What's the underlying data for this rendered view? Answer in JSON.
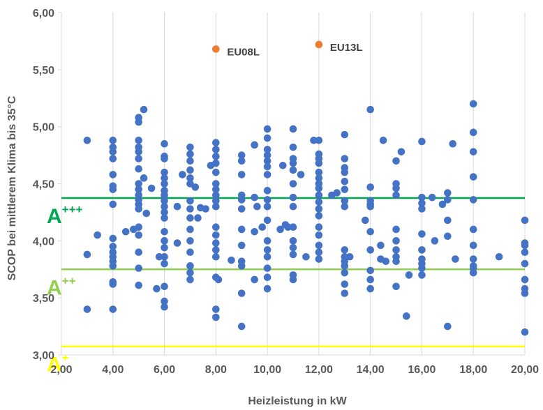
{
  "chart_data": {
    "type": "scatter",
    "title": "",
    "xlabel": "Heizleistung in kW",
    "ylabel": "SCOP bei mittlerem Klima bis 35°C",
    "xlim": [
      2,
      20
    ],
    "ylim": [
      3,
      6
    ],
    "x_ticks": [
      "2,00",
      "4,00",
      "6,00",
      "8,00",
      "10,00",
      "12,00",
      "14,00",
      "16,00",
      "18,00",
      "20,00"
    ],
    "y_ticks": [
      "3,00",
      "3,50",
      "4,00",
      "4,50",
      "5,00",
      "5,50",
      "6,00"
    ],
    "grid": "vertical",
    "point_color": "#4472c4",
    "thresholds": [
      {
        "label": "A",
        "sup": "+++",
        "value": 4.375,
        "color": "#00a651"
      },
      {
        "label": "A",
        "sup": "++",
        "value": 3.75,
        "color": "#92d050"
      },
      {
        "label": "A",
        "sup": "+",
        "value": 3.075,
        "color": "#ffff00"
      }
    ],
    "highlighted": [
      {
        "label": "EU08L",
        "x": 8,
        "y": 5.68,
        "color": "#ed7d31"
      },
      {
        "label": "EU13L",
        "x": 12,
        "y": 5.72,
        "color": "#ed7d31"
      }
    ],
    "points": [
      [
        3,
        4.88
      ],
      [
        3,
        3.88
      ],
      [
        3,
        3.4
      ],
      [
        3.4,
        4.05
      ],
      [
        4,
        4.88
      ],
      [
        4,
        4.82
      ],
      [
        4,
        4.78
      ],
      [
        4,
        4.72
      ],
      [
        4,
        4.58
      ],
      [
        4,
        4.48
      ],
      [
        4,
        4.45
      ],
      [
        4,
        4.32
      ],
      [
        4,
        4.02
      ],
      [
        4,
        3.95
      ],
      [
        4,
        3.9
      ],
      [
        4,
        3.86
      ],
      [
        4,
        3.82
      ],
      [
        4,
        3.78
      ],
      [
        4,
        3.64
      ],
      [
        4,
        3.62
      ],
      [
        4,
        3.4
      ],
      [
        4.5,
        4.08
      ],
      [
        4.8,
        4.1
      ],
      [
        5,
        5.08
      ],
      [
        5,
        5.04
      ],
      [
        5,
        4.88
      ],
      [
        5,
        4.82
      ],
      [
        5,
        4.78
      ],
      [
        5,
        4.72
      ],
      [
        5,
        4.63
      ],
      [
        5,
        4.5
      ],
      [
        5,
        4.45
      ],
      [
        5,
        4.4
      ],
      [
        5,
        4.36
      ],
      [
        5,
        4.32
      ],
      [
        5,
        4.28
      ],
      [
        5,
        4.12
      ],
      [
        5,
        4.05
      ],
      [
        5,
        3.9
      ],
      [
        5,
        3.76
      ],
      [
        5,
        3.61
      ],
      [
        5.2,
        5.15
      ],
      [
        5.2,
        4.55
      ],
      [
        5.3,
        4.24
      ],
      [
        5.5,
        4.46
      ],
      [
        5.7,
        3.58
      ],
      [
        5.8,
        3.86
      ],
      [
        6,
        4.85
      ],
      [
        6,
        4.74
      ],
      [
        6,
        4.72
      ],
      [
        6,
        4.6
      ],
      [
        6,
        4.55
      ],
      [
        6,
        4.5
      ],
      [
        6,
        4.44
      ],
      [
        6,
        4.4
      ],
      [
        6,
        4.35
      ],
      [
        6,
        4.3
      ],
      [
        6,
        4.25
      ],
      [
        6,
        4.2
      ],
      [
        6,
        4.08
      ],
      [
        6,
        4
      ],
      [
        6,
        3.94
      ],
      [
        6,
        3.86
      ],
      [
        6,
        3.8
      ],
      [
        6,
        3.6
      ],
      [
        6,
        3.47
      ],
      [
        6,
        3.42
      ],
      [
        6.5,
        4.3
      ],
      [
        6.5,
        3.98
      ],
      [
        6.7,
        4.58
      ],
      [
        7,
        4.82
      ],
      [
        7,
        4.76
      ],
      [
        7,
        4.7
      ],
      [
        7,
        4.62
      ],
      [
        7,
        4.55
      ],
      [
        7,
        4.5
      ],
      [
        7,
        4.35
      ],
      [
        7,
        4.28
      ],
      [
        7,
        4.2
      ],
      [
        7,
        4.1
      ],
      [
        7,
        4
      ],
      [
        7,
        3.9
      ],
      [
        7,
        3.78
      ],
      [
        7,
        3.72
      ],
      [
        7,
        3.66
      ],
      [
        7.2,
        4.47
      ],
      [
        7.3,
        4.2
      ],
      [
        7.4,
        4.29
      ],
      [
        7.6,
        4.28
      ],
      [
        8,
        4.86
      ],
      [
        8,
        4.8
      ],
      [
        8,
        4.74
      ],
      [
        8,
        4.68
      ],
      [
        8,
        4.6
      ],
      [
        8,
        4.5
      ],
      [
        8,
        4.45
      ],
      [
        8,
        4.4
      ],
      [
        8,
        4.35
      ],
      [
        8,
        4.3
      ],
      [
        8,
        4.12
      ],
      [
        8,
        4.05
      ],
      [
        8,
        3.98
      ],
      [
        8,
        3.92
      ],
      [
        8,
        3.86
      ],
      [
        8,
        3.68
      ],
      [
        8,
        3.4
      ],
      [
        8,
        3.33
      ],
      [
        7.8,
        4.66
      ],
      [
        8.1,
        3.66
      ],
      [
        8.6,
        3.83
      ],
      [
        9,
        4.75
      ],
      [
        9,
        4.7
      ],
      [
        9,
        4.58
      ],
      [
        9,
        4.4
      ],
      [
        9,
        4.36
      ],
      [
        9,
        4.28
      ],
      [
        9,
        4.1
      ],
      [
        9,
        3.96
      ],
      [
        9,
        3.82
      ],
      [
        9,
        3.78
      ],
      [
        9,
        3.54
      ],
      [
        9,
        3.25
      ],
      [
        9.5,
        4.84
      ],
      [
        9.5,
        4.38
      ],
      [
        9.5,
        4.08
      ],
      [
        9.5,
        3.66
      ],
      [
        9.6,
        4.3
      ],
      [
        9.8,
        4.12
      ],
      [
        10,
        4.98
      ],
      [
        10,
        4.9
      ],
      [
        10,
        4.8
      ],
      [
        10,
        4.75
      ],
      [
        10,
        4.7
      ],
      [
        10,
        4.65
      ],
      [
        10,
        4.58
      ],
      [
        10,
        4.44
      ],
      [
        10,
        4.36
      ],
      [
        10,
        4.3
      ],
      [
        10,
        4.18
      ],
      [
        10,
        4
      ],
      [
        10,
        3.92
      ],
      [
        10,
        3.86
      ],
      [
        10,
        3.76
      ],
      [
        10,
        3.68
      ],
      [
        10,
        3.58
      ],
      [
        10.5,
        4.1
      ],
      [
        10.6,
        4.66
      ],
      [
        10.7,
        4.14
      ],
      [
        10.8,
        4.12
      ],
      [
        11,
        4.98
      ],
      [
        11,
        4.82
      ],
      [
        11,
        4.72
      ],
      [
        11,
        4.68
      ],
      [
        11,
        4.62
      ],
      [
        11,
        4.5
      ],
      [
        11,
        4.38
      ],
      [
        11,
        4.3
      ],
      [
        11,
        4.12
      ],
      [
        11,
        4
      ],
      [
        11,
        3.94
      ],
      [
        11,
        3.88
      ],
      [
        11,
        3.7
      ],
      [
        11,
        3.66
      ],
      [
        11.3,
        4.58
      ],
      [
        11.5,
        3.86
      ],
      [
        11.8,
        4.88
      ],
      [
        12,
        4.88
      ],
      [
        12,
        4.76
      ],
      [
        12,
        4.72
      ],
      [
        12,
        4.68
      ],
      [
        12,
        4.6
      ],
      [
        12,
        4.55
      ],
      [
        12,
        4.5
      ],
      [
        12,
        4.46
      ],
      [
        12,
        4.4
      ],
      [
        12,
        4.34
      ],
      [
        12,
        4.28
      ],
      [
        12,
        4.22
      ],
      [
        12,
        4.12
      ],
      [
        12,
        4.05
      ],
      [
        12,
        3.96
      ],
      [
        12,
        3.9
      ],
      [
        12,
        3.84
      ],
      [
        12.5,
        4.4
      ],
      [
        12.7,
        4.42
      ],
      [
        13,
        4.93
      ],
      [
        13,
        4.72
      ],
      [
        13,
        4.64
      ],
      [
        13,
        4.6
      ],
      [
        13,
        4.52
      ],
      [
        13,
        4.45
      ],
      [
        13,
        4.35
      ],
      [
        13,
        4.3
      ],
      [
        13,
        3.92
      ],
      [
        13,
        3.86
      ],
      [
        13,
        3.82
      ],
      [
        13,
        3.78
      ],
      [
        13,
        3.72
      ],
      [
        13,
        3.62
      ],
      [
        13,
        3.54
      ],
      [
        13.2,
        3.86
      ],
      [
        14,
        5.15
      ],
      [
        14,
        4.47
      ],
      [
        14,
        4.35
      ],
      [
        14,
        4.32
      ],
      [
        14,
        4.3
      ],
      [
        14,
        4.08
      ],
      [
        14,
        3.92
      ],
      [
        14,
        3.74
      ],
      [
        14,
        3.66
      ],
      [
        14,
        3.58
      ],
      [
        13.8,
        4.18
      ],
      [
        14.4,
        3.84
      ],
      [
        14.4,
        3.96
      ],
      [
        14.5,
        4.88
      ],
      [
        14.6,
        3.82
      ],
      [
        15,
        4.7
      ],
      [
        15,
        4.5
      ],
      [
        15,
        4.46
      ],
      [
        15,
        4.4
      ],
      [
        15,
        4.1
      ],
      [
        15,
        4
      ],
      [
        15,
        3.92
      ],
      [
        15,
        3.86
      ],
      [
        15,
        3.82
      ],
      [
        15,
        3.6
      ],
      [
        15.2,
        4.78
      ],
      [
        15.4,
        3.34
      ],
      [
        15.5,
        3.7
      ],
      [
        16,
        4.87
      ],
      [
        16,
        4.38
      ],
      [
        16,
        4.33
      ],
      [
        16,
        4.28
      ],
      [
        16,
        4.06
      ],
      [
        16,
        3.92
      ],
      [
        16,
        3.84
      ],
      [
        16,
        3.8
      ],
      [
        16,
        3.76
      ],
      [
        16,
        3.7
      ],
      [
        16.4,
        4.38
      ],
      [
        16.5,
        4
      ],
      [
        16.8,
        4.32
      ],
      [
        17,
        4.42
      ],
      [
        17,
        4.36
      ],
      [
        17,
        4.18
      ],
      [
        17,
        4.04
      ],
      [
        17,
        3.25
      ],
      [
        17.2,
        4.85
      ],
      [
        17.3,
        3.84
      ],
      [
        18,
        5.2
      ],
      [
        18,
        4.95
      ],
      [
        18,
        4.78
      ],
      [
        18,
        4.56
      ],
      [
        18,
        4.36
      ],
      [
        18,
        4.1
      ],
      [
        18,
        3.96
      ],
      [
        18,
        3.84
      ],
      [
        18,
        3.78
      ],
      [
        18,
        3.76
      ],
      [
        18,
        3.72
      ],
      [
        19,
        3.86
      ],
      [
        20,
        4.18
      ],
      [
        20,
        3.98
      ],
      [
        20,
        3.96
      ],
      [
        20,
        3.9
      ],
      [
        20,
        3.8
      ],
      [
        20,
        3.66
      ],
      [
        20,
        3.58
      ],
      [
        20,
        3.54
      ],
      [
        20,
        3.2
      ]
    ]
  }
}
